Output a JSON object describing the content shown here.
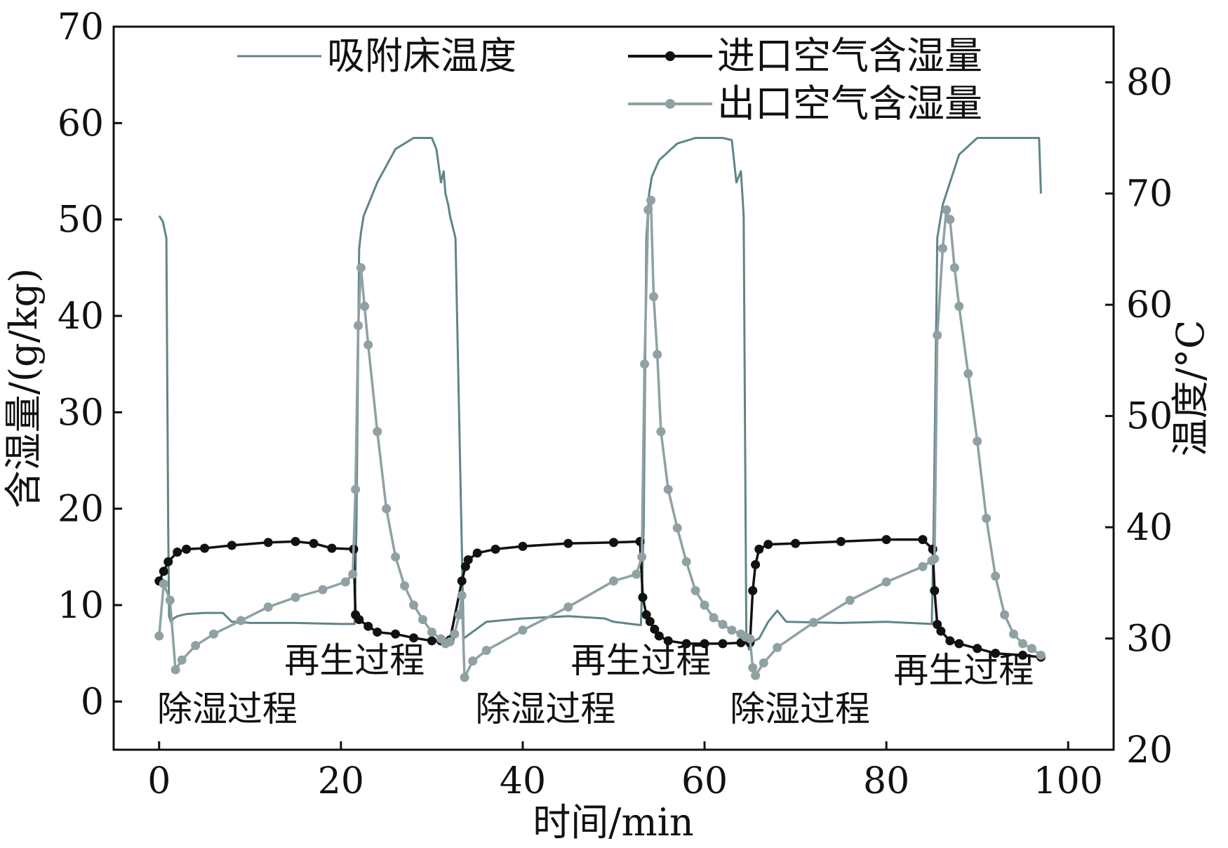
{
  "chart_data": {
    "type": "line",
    "title": "",
    "xlabel": "时间/min",
    "ylabel_left": "含湿量/(g/kg)",
    "ylabel_right": "温度/°C",
    "xlim": [
      -5,
      105
    ],
    "ylim_left": [
      -5,
      70
    ],
    "ylim_right": [
      20,
      85
    ],
    "x_ticks": [
      0,
      20,
      40,
      60,
      80,
      100
    ],
    "y_ticks_left": [
      0,
      10,
      20,
      30,
      40,
      50,
      60,
      70
    ],
    "y_ticks_right": [
      20,
      30,
      40,
      50,
      60,
      70,
      80
    ],
    "grid": false,
    "legend_position": "top",
    "colors": {
      "bed_temp": "#5f8587",
      "inlet": "#111111",
      "outlet": "#8fa1a3"
    },
    "annotations": [
      {
        "text": "除湿过程",
        "x": 7.5,
        "y": -2.0
      },
      {
        "text": "再生过程",
        "x": 21.5,
        "y": 3.0
      },
      {
        "text": "除湿过程",
        "x": 42.5,
        "y": -2.0
      },
      {
        "text": "再生过程",
        "x": 53.0,
        "y": 3.0
      },
      {
        "text": "除湿过程",
        "x": 70.5,
        "y": -2.0
      },
      {
        "text": "再生过程",
        "x": 88.5,
        "y": 2.0
      }
    ],
    "series": [
      {
        "name": "吸附床温度",
        "axis": "right",
        "marker": "none",
        "x": [
          0,
          0.4,
          0.8,
          1.0,
          1.1,
          1.3,
          1.6,
          2.0,
          3,
          5,
          7,
          8,
          8.5,
          10,
          15,
          20,
          21.5,
          21.7,
          22.0,
          22.2,
          22.5,
          24,
          26,
          28,
          30,
          30.5,
          31,
          31.3,
          31.5,
          31.8,
          32.0,
          32.3,
          32.6,
          33.5,
          36,
          40,
          45,
          49,
          50,
          53,
          53.3,
          53.6,
          53.9,
          54.2,
          55,
          57,
          59,
          62,
          63,
          63.5,
          64,
          64.3,
          64.6,
          64.9,
          65.2,
          65.5,
          66,
          67,
          68,
          69,
          75,
          80,
          85,
          85.2,
          85.6,
          86.2,
          88,
          90,
          92,
          96,
          96.8,
          97
        ],
        "y": [
          68,
          67.5,
          66,
          40,
          32,
          31.5,
          31.8,
          32,
          32.2,
          32.3,
          32.3,
          31.5,
          31.5,
          31.4,
          31.4,
          31.3,
          31.3,
          40,
          65,
          66.5,
          68,
          71,
          74,
          75,
          75,
          74,
          71,
          72,
          70,
          69,
          68,
          67,
          66,
          30,
          31.5,
          31.8,
          32,
          31.8,
          31.5,
          31.2,
          40,
          66,
          70,
          71.5,
          73,
          74.5,
          75,
          75,
          74.8,
          71,
          72,
          68,
          30,
          29,
          29.5,
          29.8,
          30,
          31.5,
          32.5,
          31.5,
          31.4,
          31.5,
          31.3,
          40,
          66,
          69,
          73.5,
          75,
          75,
          75,
          75,
          70
        ]
      },
      {
        "name": "进口空气含湿量",
        "axis": "left",
        "marker": "circle",
        "x": [
          0,
          0.5,
          1,
          2,
          3,
          5,
          8,
          12,
          15,
          17,
          19,
          21.4,
          21.6,
          22,
          23,
          24,
          26,
          28,
          30,
          31,
          32,
          33.3,
          33.7,
          34,
          35,
          37,
          40,
          45,
          50,
          52.9,
          53.2,
          53.6,
          54,
          54.5,
          55,
          56,
          58,
          60,
          62,
          64,
          65,
          65.3,
          65.6,
          66,
          67,
          70,
          75,
          80,
          84,
          85.1,
          85.3,
          85.6,
          86,
          87,
          88,
          90,
          92,
          95,
          97
        ],
        "y": [
          12.5,
          13.5,
          14.5,
          15.5,
          15.8,
          15.9,
          16.2,
          16.5,
          16.6,
          16.4,
          15.9,
          15.8,
          9,
          8.5,
          7.8,
          7.2,
          7.0,
          6.6,
          6.3,
          6.3,
          6.4,
          12.5,
          14.0,
          14.7,
          15.4,
          15.8,
          16.1,
          16.4,
          16.5,
          16.6,
          10.8,
          9.0,
          8.3,
          7.5,
          6.8,
          6.3,
          6.0,
          6.0,
          6.0,
          6.1,
          6.1,
          11.5,
          14.2,
          15.8,
          16.3,
          16.4,
          16.6,
          16.8,
          16.8,
          15.8,
          11.5,
          8.0,
          7.3,
          6.3,
          6.0,
          5.5,
          5.0,
          4.8,
          4.6
        ]
      },
      {
        "name": "出口空气含湿量",
        "axis": "left",
        "marker": "circle",
        "x": [
          0,
          0.5,
          1.2,
          1.8,
          2.5,
          4,
          6,
          9,
          12,
          15,
          18,
          20.5,
          21.3,
          21.6,
          21.9,
          22.2,
          22.6,
          23,
          24,
          25,
          26,
          27,
          28,
          29,
          30,
          31,
          31.5,
          32,
          32.5,
          33.0,
          33.3,
          33.6,
          34.5,
          36,
          40,
          45,
          50,
          52.5,
          53.1,
          53.4,
          53.8,
          54.1,
          54.4,
          54.8,
          55.2,
          56,
          57,
          58,
          59,
          60,
          61,
          62,
          63,
          64,
          64.5,
          65,
          65.3,
          65.6,
          66.5,
          68,
          72,
          76,
          80,
          84,
          85,
          85.3,
          85.6,
          86.2,
          86.6,
          87,
          87.5,
          88,
          89,
          90,
          91,
          92,
          93,
          94,
          95,
          96,
          97
        ],
        "y": [
          6.8,
          12.2,
          10.5,
          3.3,
          4.3,
          5.8,
          7.0,
          8.4,
          9.8,
          10.8,
          11.6,
          12.4,
          13.2,
          22,
          39,
          45,
          41,
          37,
          28,
          20,
          15,
          12,
          10,
          8.5,
          7.2,
          6.5,
          6.0,
          6.2,
          7.0,
          9.0,
          11.0,
          2.5,
          4.2,
          5.3,
          7.4,
          9.8,
          12.5,
          13.2,
          15,
          35,
          51,
          52,
          42,
          36,
          28,
          22,
          18,
          14.5,
          11.5,
          10.0,
          8.7,
          8.0,
          7.4,
          7.0,
          6.7,
          6.5,
          3.5,
          2.7,
          4.0,
          5.6,
          8.2,
          10.5,
          12.4,
          14.0,
          14.6,
          14.8,
          38,
          47,
          51,
          50,
          45,
          41,
          34,
          27,
          19,
          13,
          9,
          7,
          6,
          5.5,
          4.8
        ]
      }
    ]
  }
}
